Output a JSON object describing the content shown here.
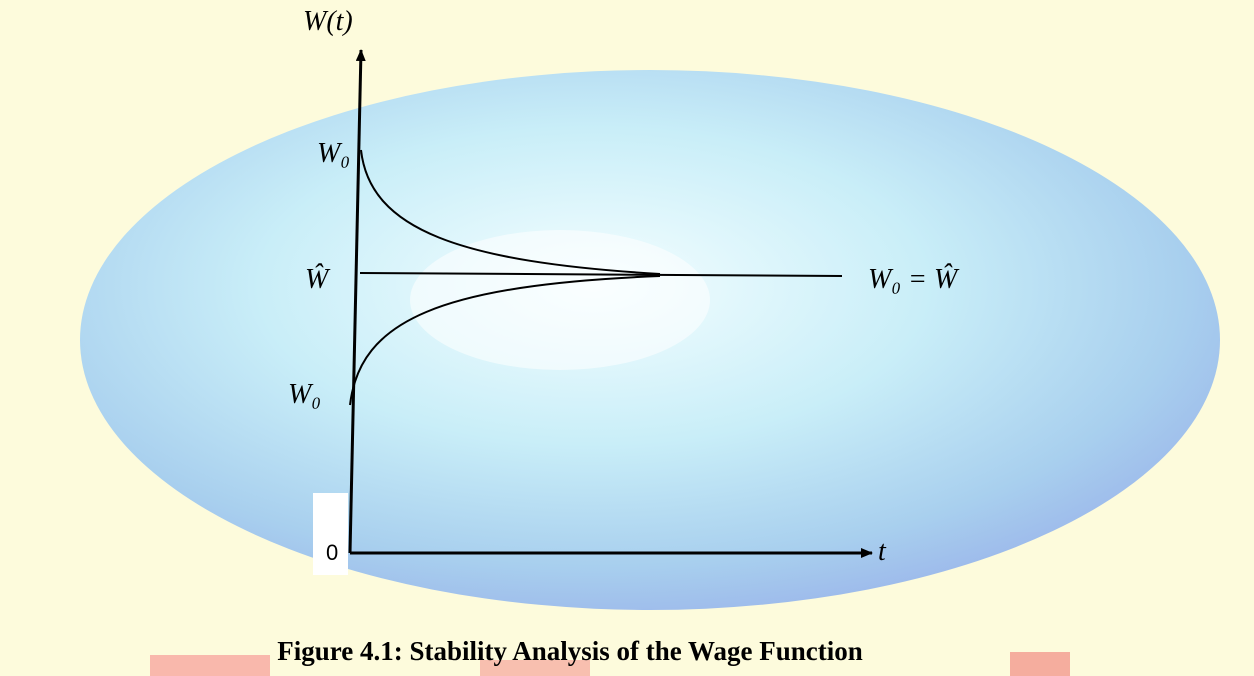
{
  "axis_labels": {
    "y": "W(t)",
    "x": "t",
    "origin": "0"
  },
  "curve_labels": [
    "W₀",
    "Ŵ",
    "W₀",
    "W₀ = Ŵ"
  ],
  "caption": "Figure 4.1: Stability Analysis of the Wage Function"
}
